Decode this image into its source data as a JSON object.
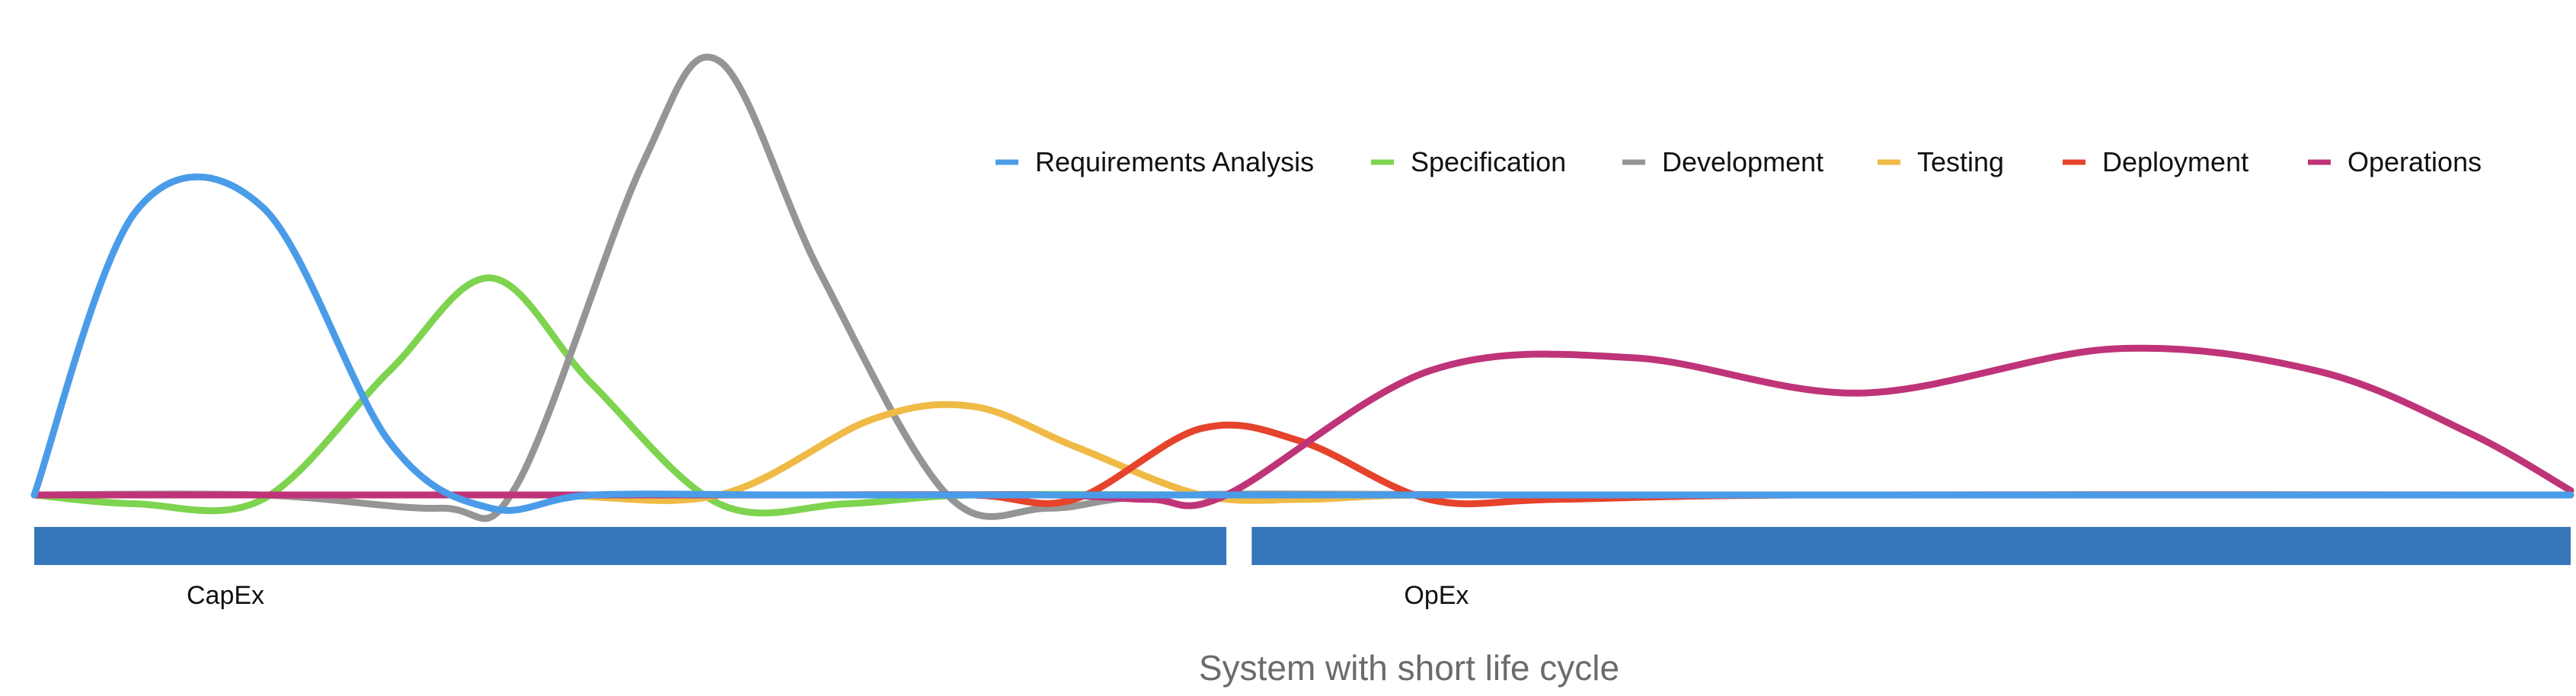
{
  "chart_data": {
    "type": "line",
    "title": "System with short life cycle",
    "legend_position": "top-right",
    "grid": false,
    "xlim": [
      0,
      100
    ],
    "ylim": [
      -5,
      100
    ],
    "series": [
      {
        "name": "Requirements Analysis",
        "color": "#4a9ce8",
        "points": [
          [
            0,
            0
          ],
          [
            4,
            64
          ],
          [
            9,
            65
          ],
          [
            14,
            12
          ],
          [
            18,
            -3
          ],
          [
            22,
            0
          ],
          [
            30,
            0
          ],
          [
            40,
            0
          ],
          [
            47,
            0
          ],
          [
            60,
            0
          ],
          [
            70,
            0
          ],
          [
            80,
            0
          ],
          [
            90,
            0
          ],
          [
            100,
            0
          ]
        ]
      },
      {
        "name": "Specification",
        "color": "#7ed34f",
        "points": [
          [
            0,
            0
          ],
          [
            4,
            -2
          ],
          [
            9,
            -1
          ],
          [
            14,
            28
          ],
          [
            18,
            49
          ],
          [
            22,
            25
          ],
          [
            27,
            -2
          ],
          [
            32,
            -2
          ],
          [
            37,
            0
          ],
          [
            47,
            0
          ],
          [
            60,
            0
          ],
          [
            80,
            0
          ],
          [
            100,
            0
          ]
        ]
      },
      {
        "name": "Development",
        "color": "#959595",
        "points": [
          [
            0,
            0
          ],
          [
            9,
            0
          ],
          [
            16,
            -3
          ],
          [
            19,
            2
          ],
          [
            24,
            75
          ],
          [
            27,
            98
          ],
          [
            31,
            50
          ],
          [
            36,
            0
          ],
          [
            40,
            -3
          ],
          [
            45,
            0
          ],
          [
            60,
            0
          ],
          [
            80,
            0
          ],
          [
            100,
            0
          ]
        ]
      },
      {
        "name": "Testing",
        "color": "#efba45",
        "points": [
          [
            0,
            0
          ],
          [
            10,
            0
          ],
          [
            20,
            0
          ],
          [
            27,
            0
          ],
          [
            33,
            17
          ],
          [
            37,
            20
          ],
          [
            41,
            11
          ],
          [
            46,
            0
          ],
          [
            50,
            -1
          ],
          [
            55,
            0
          ],
          [
            70,
            0
          ],
          [
            100,
            0
          ]
        ]
      },
      {
        "name": "Deployment",
        "color": "#e5432c",
        "points": [
          [
            0,
            0
          ],
          [
            20,
            0
          ],
          [
            30,
            0
          ],
          [
            37,
            0
          ],
          [
            41,
            -1
          ],
          [
            46,
            15
          ],
          [
            50,
            12
          ],
          [
            55,
            -1
          ],
          [
            60,
            -1
          ],
          [
            70,
            0
          ],
          [
            100,
            0
          ]
        ]
      },
      {
        "name": "Operations",
        "color": "#bf3478",
        "points": [
          [
            0,
            0
          ],
          [
            30,
            0
          ],
          [
            40,
            0
          ],
          [
            44,
            -1
          ],
          [
            47,
            0
          ],
          [
            55,
            28
          ],
          [
            63,
            31
          ],
          [
            72,
            23
          ],
          [
            82,
            33
          ],
          [
            90,
            28
          ],
          [
            96,
            14
          ],
          [
            100,
            1
          ]
        ]
      }
    ],
    "phases": [
      {
        "label": "CapEx",
        "range": [
          0,
          47
        ]
      },
      {
        "label": "OpEx",
        "range": [
          48,
          100
        ]
      }
    ]
  }
}
